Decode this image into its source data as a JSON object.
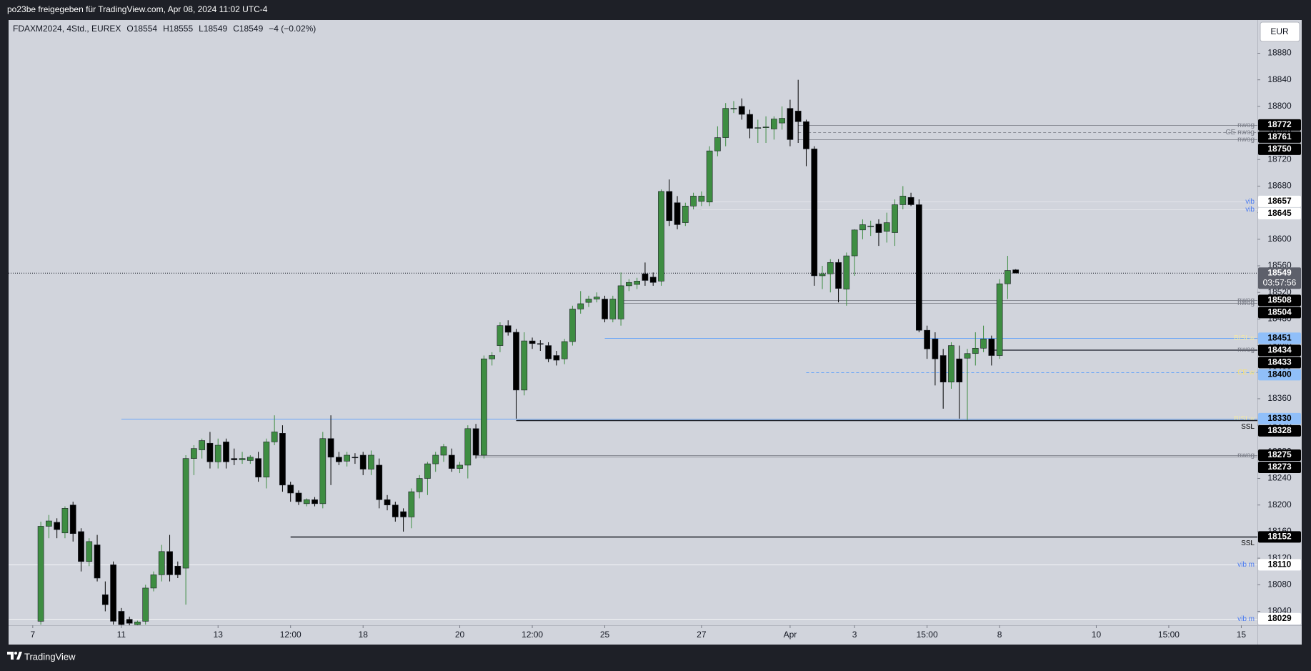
{
  "header": {
    "text": "po23be freigegeben für TradingView.com, Apr 08, 2024 11:02 UTC-4"
  },
  "footer": {
    "brand": "TradingView"
  },
  "chart_data": {
    "type": "candlestick",
    "symbol": "FDAXM2024, 4Std., EUREX",
    "legend_values": [
      "O18554",
      "H18555",
      "L18549",
      "C18549",
      "−4 (−0.02%)"
    ],
    "currency": "EUR",
    "open": [
      18025,
      18168,
      18174,
      18158,
      18200,
      18160,
      18115,
      18140,
      18065,
      18110,
      18040,
      18028,
      18020,
      18025,
      18075,
      18095,
      18130,
      18108,
      18105,
      18270,
      18283,
      18293,
      18265,
      18295,
      18270,
      18268,
      18267,
      18270,
      18242,
      18295,
      18308,
      18230,
      18218,
      18202,
      18208,
      18202,
      18300,
      18272,
      18266,
      18272,
      18275,
      18254,
      18260,
      18208,
      18200,
      18190,
      18182,
      18220,
      18240,
      18262,
      18275,
      18275,
      18255,
      18260,
      18315,
      18275,
      18420,
      18440,
      18470,
      18460,
      18373,
      18447,
      18443,
      18440,
      18425,
      18420,
      18446,
      18495,
      18505,
      18510,
      18510,
      18480,
      18480,
      18530,
      18532,
      18548,
      18543,
      18537,
      18672,
      18655,
      18625,
      18650,
      18657,
      18656,
      18733,
      18753,
      18796,
      18800,
      18788,
      18768,
      18768,
      18766,
      18775,
      18797,
      18793,
      18777,
      18736,
      18545,
      18548,
      18565,
      18525,
      18575,
      18614,
      18620,
      18623,
      18612,
      18610,
      18652,
      18663,
      18652,
      18463,
      18450,
      18425,
      18385,
      18420,
      18421,
      18428,
      18436,
      18450,
      18425,
      18533,
      18554
    ],
    "high": [
      18175,
      18185,
      18180,
      18198,
      18205,
      18165,
      18150,
      18155,
      18085,
      18115,
      18045,
      18032,
      18026,
      18080,
      18100,
      18140,
      18155,
      18115,
      18275,
      18290,
      18300,
      18310,
      18300,
      18300,
      18285,
      18280,
      18275,
      18280,
      18300,
      18335,
      18320,
      18235,
      18222,
      18210,
      18212,
      18310,
      18335,
      18280,
      18280,
      18278,
      18280,
      18282,
      18270,
      18215,
      18205,
      18195,
      18225,
      18245,
      18265,
      18280,
      18292,
      18285,
      18265,
      18320,
      18322,
      18425,
      18430,
      18475,
      18478,
      18465,
      18460,
      18452,
      18448,
      18445,
      18432,
      18450,
      18500,
      18522,
      18515,
      18520,
      18515,
      18515,
      18550,
      18540,
      18542,
      18565,
      18550,
      18675,
      18690,
      18665,
      18655,
      18670,
      18672,
      18740,
      18770,
      18805,
      18808,
      18812,
      18795,
      18780,
      18785,
      18785,
      18800,
      18810,
      18840,
      18780,
      18740,
      18560,
      18570,
      18570,
      18580,
      18615,
      18630,
      18628,
      18630,
      18640,
      18660,
      18680,
      18670,
      18660,
      18470,
      18460,
      18435,
      18445,
      18440,
      18435,
      18460,
      18470,
      18455,
      18540,
      18575,
      18555
    ],
    "low": [
      18020,
      18150,
      18150,
      18150,
      18145,
      18100,
      18108,
      18085,
      18040,
      18020,
      18019,
      18019,
      18019,
      18020,
      18070,
      18085,
      18085,
      18090,
      18050,
      18245,
      18270,
      18255,
      18255,
      18255,
      18260,
      18262,
      18262,
      18235,
      18225,
      18290,
      18220,
      18205,
      18200,
      18198,
      18198,
      18195,
      18230,
      18260,
      18258,
      18262,
      18245,
      18245,
      18195,
      18192,
      18175,
      18160,
      18165,
      18210,
      18215,
      18250,
      18265,
      18250,
      18248,
      18240,
      18270,
      18270,
      18410,
      18430,
      18455,
      18330,
      18365,
      18435,
      18432,
      18415,
      18410,
      18412,
      18440,
      18488,
      18498,
      18505,
      18475,
      18475,
      18470,
      18522,
      18525,
      18530,
      18530,
      18530,
      18620,
      18615,
      18620,
      18645,
      18650,
      18650,
      18725,
      18740,
      18790,
      18780,
      18752,
      18745,
      18745,
      18750,
      18765,
      18740,
      18745,
      18710,
      18530,
      18525,
      18520,
      18505,
      18500,
      18545,
      18600,
      18605,
      18590,
      18595,
      18590,
      18645,
      18650,
      18460,
      18420,
      18380,
      18345,
      18375,
      18330,
      18328,
      18410,
      18430,
      18410,
      18420,
      18510,
      18549
    ],
    "close": [
      18168,
      18176,
      18163,
      18195,
      18157,
      18115,
      18145,
      18090,
      18050,
      18025,
      18020,
      18022,
      18024,
      18075,
      18095,
      18130,
      18095,
      18095,
      18270,
      18285,
      18297,
      18265,
      18290,
      18265,
      18268,
      18270,
      18272,
      18242,
      18295,
      18310,
      18230,
      18218,
      18205,
      18208,
      18202,
      18300,
      18272,
      18265,
      18275,
      18271,
      18254,
      18275,
      18208,
      18200,
      18182,
      18182,
      18220,
      18240,
      18262,
      18275,
      18288,
      18255,
      18260,
      18315,
      18275,
      18420,
      18425,
      18470,
      18460,
      18373,
      18447,
      18443,
      18442,
      18420,
      18418,
      18446,
      18495,
      18503,
      18510,
      18513,
      18480,
      18510,
      18530,
      18535,
      18537,
      18538,
      18535,
      18672,
      18628,
      18622,
      18650,
      18665,
      18665,
      18733,
      18753,
      18797,
      18797,
      18788,
      18767,
      18768,
      18769,
      18781,
      18782,
      18750,
      18777,
      18736,
      18545,
      18548,
      18565,
      18526,
      18575,
      18614,
      18622,
      18620,
      18610,
      18625,
      18652,
      18665,
      18652,
      18463,
      18435,
      18420,
      18385,
      18440,
      18385,
      18428,
      18436,
      18450,
      18425,
      18533,
      18553,
      18549
    ],
    "up_color": "#3e8d42",
    "down_color": "#000000",
    "xlim": [
      -4,
      151
    ],
    "xticks": [
      {
        "value": -1,
        "label": "7"
      },
      {
        "value": 10,
        "label": "11"
      },
      {
        "value": 22,
        "label": "13"
      },
      {
        "value": 31,
        "label": "12:00"
      },
      {
        "value": 40,
        "label": "18"
      },
      {
        "value": 52,
        "label": "20"
      },
      {
        "value": 61,
        "label": "12:00"
      },
      {
        "value": 70,
        "label": "25"
      },
      {
        "value": 82,
        "label": "27"
      },
      {
        "value": 93,
        "label": "Apr"
      },
      {
        "value": 101,
        "label": "3"
      },
      {
        "value": 110,
        "label": "15:00"
      },
      {
        "value": 119,
        "label": "8"
      },
      {
        "value": 131,
        "label": "10"
      },
      {
        "value": 140,
        "label": "15:00"
      },
      {
        "value": 149,
        "label": "15"
      }
    ],
    "ylim": [
      18019,
      18930
    ],
    "yticks": [
      18040,
      18080,
      18120,
      18160,
      18200,
      18240,
      18280,
      18320,
      18360,
      18400,
      18440,
      18480,
      18520,
      18560,
      18600,
      18640,
      18680,
      18720,
      18760,
      18800,
      18840,
      18880
    ],
    "last_price": 18549,
    "countdown": "03:57:56",
    "levels": [
      {
        "value": 18772,
        "label": "nwog",
        "from": 94,
        "color": "#8a8d96",
        "label_color": "#787b86",
        "tag_color": "#000000",
        "tag_text_color": "#ffffff"
      },
      {
        "value": 18761,
        "label": "CE nwog",
        "from": 94,
        "color": "#8a8d96",
        "label_color": "#787b86",
        "tag_color": "#000000",
        "tag_text_color": "#ffffff",
        "dashed": true
      },
      {
        "value": 18750,
        "label": "nwog",
        "from": 94,
        "color": "#8a8d96",
        "label_color": "#787b86",
        "tag_color": "#000000",
        "tag_text_color": "#ffffff"
      },
      {
        "value": 18657,
        "label": "vib",
        "from": 82,
        "color": "#e3e5ea",
        "label_color": "#4f7ef0",
        "tag_color": "#ffffff",
        "tag_text_color": "#000000"
      },
      {
        "value": 18645,
        "label": "vib",
        "from": 82,
        "color": "#e3e5ea",
        "label_color": "#4f7ef0",
        "tag_color": "#ffffff",
        "tag_text_color": "#000000"
      },
      {
        "value": 18508,
        "label": "nwog",
        "from": 72,
        "color": "#8a8d96",
        "label_color": "#787b86",
        "tag_color": "#000000",
        "tag_text_color": "#ffffff"
      },
      {
        "value": 18504,
        "label": "nwog",
        "from": 72,
        "color": "#8a8d96",
        "label_color": "#787b86",
        "tag_color": "#000000",
        "tag_text_color": "#ffffff"
      },
      {
        "value": 18451,
        "label": "BISI w",
        "from": 70,
        "color": "#6aa6f8",
        "label_color": "#f2e8a6",
        "tag_color": "#90bff9",
        "tag_text_color": "#000000"
      },
      {
        "value": 18434,
        "label": "nwog",
        "from": 118,
        "color": "#5d606b",
        "label_color": "#787b86",
        "tag_color": "#000000",
        "tag_text_color": "#ffffff"
      },
      {
        "value": 18433,
        "from": 118,
        "color": "#5d606b",
        "tag_color": "#000000",
        "tag_text_color": "#ffffff"
      },
      {
        "value": 18400,
        "label": "CE w",
        "from": 95,
        "color": "#6aa6f8",
        "label_color": "#f5e17a",
        "tag_color": "#90bff9",
        "tag_text_color": "#000000",
        "dashed": true
      },
      {
        "value": 18330,
        "label": "BISI w",
        "from": 10,
        "color": "#6aa6f8",
        "label_color": "#f2e8a6",
        "tag_color": "#90bff9",
        "tag_text_color": "#000000"
      },
      {
        "value": 18328,
        "label": "SSL",
        "from": 59,
        "color": "#1a1d26",
        "label_color": "#000000",
        "tag_color": "#000000",
        "tag_text_color": "#ffffff",
        "below": true
      },
      {
        "value": 18275,
        "label": "nwog",
        "from": 54,
        "color": "#8a8d96",
        "label_color": "#787b86",
        "tag_color": "#000000",
        "tag_text_color": "#ffffff"
      },
      {
        "value": 18273,
        "from": 54,
        "color": "#8a8d96",
        "tag_color": "#000000",
        "tag_text_color": "#ffffff"
      },
      {
        "value": 18152,
        "label": "SSL",
        "from": 31,
        "color": "#1a1d26",
        "label_color": "#000000",
        "tag_color": "#000000",
        "tag_text_color": "#ffffff",
        "below": true
      },
      {
        "value": 18110,
        "label": "vib m",
        "from": -4,
        "color": "#f4f5f7",
        "label_color": "#4f7ef0",
        "tag_color": "#ffffff",
        "tag_text_color": "#000000"
      },
      {
        "value": 18029,
        "label": "vib m",
        "from": -4,
        "color": "#f4f5f7",
        "label_color": "#4f7ef0",
        "tag_color": "#ffffff",
        "tag_text_color": "#000000"
      }
    ]
  }
}
